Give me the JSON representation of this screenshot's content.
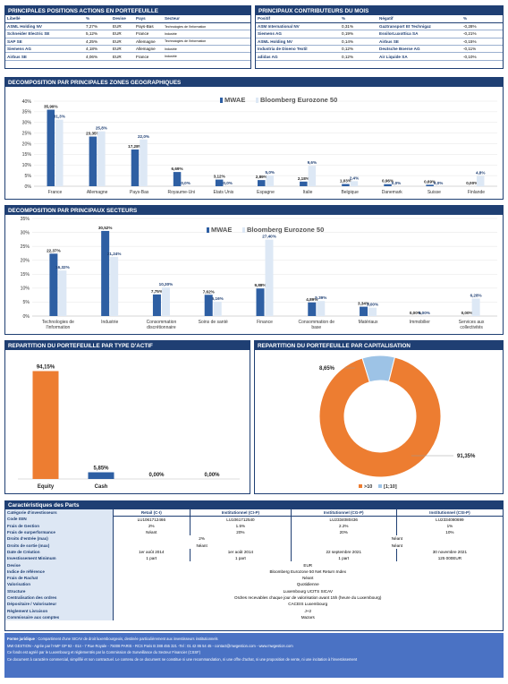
{
  "positions": {
    "title": "PRINCIPALES POSITIONS ACTIONS EN PORTEFEUILLE",
    "headers": [
      "Libellé",
      "%",
      "Devise",
      "Pays",
      "Secteur"
    ],
    "rows": [
      [
        "ASML Holding NV",
        "7,27%",
        "EUR",
        "Pays-Bas",
        "Technologies de l'information"
      ],
      [
        "Schneider Electric SE",
        "5,12%",
        "EUR",
        "France",
        "Industrie"
      ],
      [
        "SAP SE",
        "4,25%",
        "EUR",
        "Allemagne",
        "Technologies de l'information"
      ],
      [
        "Siemens AG",
        "4,18%",
        "EUR",
        "Allemagne",
        "Industrie"
      ],
      [
        "Airbus SE",
        "4,06%",
        "EUR",
        "France",
        "Industrie"
      ]
    ]
  },
  "contributors": {
    "title": "PRINCIPAUX CONTRIBUTEURS DU MOIS",
    "headers": [
      "Positif",
      "%",
      "Négatif",
      "%"
    ],
    "rows": [
      [
        "ASM International NV",
        "0,31%",
        "Gaztransport Et Technigaz",
        "-0,28%"
      ],
      [
        "Siemens AG",
        "0,19%",
        "EssilorLuxottica SA",
        "-0,21%"
      ],
      [
        "ASML Holding NV",
        "0,14%",
        "Airbus SE",
        "-0,15%"
      ],
      [
        "Industria de Diseno Textil",
        "0,12%",
        "Deutsche Boerse AG",
        "-0,11%"
      ],
      [
        "adidas AG",
        "0,12%",
        "Air Liquide SA",
        "-0,10%"
      ]
    ]
  },
  "geo": {
    "title": "DECOMPOSITION PAR PRINCIPALES ZONES GEOGRAPHIQUES",
    "legend": [
      "MWAE",
      "Bloomberg Eurozone 50"
    ]
  },
  "sect": {
    "title": "DECOMPOSITION PAR PRINCIPAUX SECTEURS",
    "legend": [
      "MWAE",
      "Bloomberg Eurozone 50"
    ]
  },
  "type": {
    "title": "REPARTITION DU PORTEFEUILLE PAR TYPE D'ACTIF"
  },
  "cap": {
    "title": "REPARTITION DU PORTEFEUILLE PAR CAPITALISATION"
  },
  "chart_data": [
    {
      "type": "bar",
      "title": "DECOMPOSITION PAR PRINCIPALES ZONES GEOGRAPHIQUES",
      "categories": [
        "France",
        "Allemagne",
        "Pays-Bas",
        "Royaume-Uni",
        "Etats Unis",
        "Espagne",
        "Italie",
        "Belgique",
        "Danemark",
        "Suisse",
        "Finlande"
      ],
      "series": [
        {
          "name": "MWAE",
          "values": [
            35.99,
            23.35,
            17.28,
            6.69,
            3.12,
            2.89,
            2.18,
            1.03,
            0.96,
            0.69,
            0.0
          ]
        },
        {
          "name": "Bloomberg Eurozone 50",
          "values": [
            31.3,
            25.8,
            22.0,
            0.0,
            0.0,
            5.0,
            9.6,
            2.4,
            0.0,
            0.0,
            4.8
          ]
        }
      ],
      "labels": [
        [
          "35,99%",
          "23,35%",
          "17,28%",
          "6,69%",
          "3,12%",
          "2,89%",
          "2,18%",
          "1,03%",
          "0,96%",
          "0,69%",
          "0,00%"
        ],
        [
          "31,3%",
          "25,8%",
          "22,0%",
          "0,0%",
          "0,0%",
          "5,0%",
          "9,6%",
          "2,4%",
          "0,0%",
          "0,0%",
          "4,8%"
        ]
      ],
      "yticks": [
        "0%",
        "5%",
        "10%",
        "15%",
        "20%",
        "25%",
        "30%",
        "35%",
        "40%"
      ],
      "ylim": [
        0,
        40
      ],
      "legend_position": "top"
    },
    {
      "type": "bar",
      "title": "DECOMPOSITION PAR PRINCIPAUX SECTEURS",
      "categories": [
        "Technologies de l'information",
        "Industrie",
        "Consommation discrétionnaire",
        "Soins de santé",
        "Finance",
        "Consommation de base",
        "Matériaux",
        "Immobilier",
        "Services aux collectivités"
      ],
      "category_lines": [
        [
          "Technologies de",
          "l'information"
        ],
        [
          "Industrie"
        ],
        [
          "Consommation",
          "discrétionnaire"
        ],
        [
          "Soins de santé"
        ],
        [
          "Finance"
        ],
        [
          "Consommation de",
          "base"
        ],
        [
          "Matériaux"
        ],
        [
          "Immobilier"
        ],
        [
          "Services aux",
          "collectivités"
        ]
      ],
      "series": [
        {
          "name": "MWAE",
          "values": [
            22.37,
            30.52,
            7.75,
            7.62,
            9.88,
            4.89,
            3.34,
            0.0,
            0.0
          ]
        },
        {
          "name": "Bloomberg Eurozone 50",
          "values": [
            16.32,
            21.24,
            10.3,
            5.16,
            27.4,
            5.39,
            3.0,
            0.0,
            6.28
          ]
        }
      ],
      "labels": [
        [
          "22,37%",
          "30,52%",
          "7,75%",
          "7,62%",
          "9,88%",
          "4,89%",
          "3,34%",
          "0,00%",
          "0,00%"
        ],
        [
          "16,32%",
          "21,24%",
          "10,30%",
          "5,16%",
          "27,40%",
          "5,39%",
          "3,00%",
          "0,00%",
          "6,28%"
        ]
      ],
      "yticks": [
        "0%",
        "5%",
        "10%",
        "15%",
        "20%",
        "25%",
        "30%",
        "35%"
      ],
      "ylim": [
        0,
        35
      ],
      "legend_position": "top"
    },
    {
      "type": "bar",
      "title": "REPARTITION DU PORTEFEUILLE PAR TYPE D'ACTIF",
      "categories": [
        "Equity",
        "Cash",
        "",
        ""
      ],
      "values": [
        94.15,
        5.85,
        0.0,
        0.0
      ],
      "labels": [
        "94,15%",
        "5,85%",
        "0,00%",
        "0,00%"
      ],
      "colors": [
        "#ed7d31",
        "#2e5fa3",
        "#2e5fa3",
        "#2e5fa3"
      ],
      "ylim": [
        0,
        100
      ]
    },
    {
      "type": "pie",
      "title": "REPARTITION DU PORTEFEUILLE PAR CAPITALISATION",
      "categories": [
        ">10",
        "[1;10]"
      ],
      "values": [
        91.35,
        8.65
      ],
      "labels": [
        "91,35%",
        "8,65%"
      ],
      "colors": [
        "#ed7d31",
        "#9dc3e6"
      ],
      "legend_position": "bottom"
    }
  ],
  "caract": {
    "title": "Caractéristiques des Parts",
    "col_heads": [
      "Retail (C-I)",
      "Institutionnel (CI-P)",
      "Institutionnel (CG-P)",
      "Institutionnel (CSI-P)"
    ],
    "rows": [
      {
        "label": "Catégorie d'investisseurs",
        "cells": [
          "Retail (C-I)",
          "Institutionnel (CI-P)",
          "Institutionnel (CG-P)",
          "Institutionnel (CSI-P)"
        ],
        "hd": true
      },
      {
        "label": "Code ISIN",
        "cells": [
          "LU1061712466",
          "LU1061712540",
          "LU2334080436",
          "LU2334080699"
        ]
      },
      {
        "label": "Frais de Gestion",
        "cells": [
          "2%",
          "1.5%",
          "2.2%",
          "1%"
        ]
      },
      {
        "label": "Frais de surperformance",
        "cells": [
          "Néant",
          "20%",
          "20%",
          "10%"
        ]
      },
      {
        "label": "Droits d'entrée (max)",
        "cells2": [
          "2%",
          "Néant"
        ]
      },
      {
        "label": "Droits de sortie (max)",
        "cells2": [
          "Néant",
          "Néant"
        ]
      },
      {
        "label": "Date de Création",
        "cells": [
          "1er août 2014",
          "1er août 2014",
          "22 septembre 2021",
          "30 novembre 2021"
        ]
      },
      {
        "label": "Investissement Minimum",
        "cells": [
          "1 part",
          "1 part",
          "1 part",
          "125 000EUR"
        ]
      },
      {
        "label": "Devise",
        "full": "EUR"
      },
      {
        "label": "Indice de référence",
        "full": "Bloomberg Eurozone 50 Net Return Index"
      },
      {
        "label": "Frais de Rachat",
        "full": "Néant"
      },
      {
        "label": "Valorisation",
        "full": "Quotidienne"
      },
      {
        "label": "Structure",
        "full": "Luxembourg UCITS SICAV"
      },
      {
        "label": "Centralisation des ordres",
        "full": "Ordres recevables chaque jour de valorisation avant 15h (heure du Luxembourg)"
      },
      {
        "label": "Dépositaire / Valorisateur",
        "full": "CACEIS Luxembourg"
      },
      {
        "label": "Règlement Livraison",
        "full": "J+2"
      },
      {
        "label": "Commissaire aux comptes",
        "full": "Mazars"
      }
    ]
  },
  "footer": {
    "l1_bold": "Forme juridique",
    "l1": " : Compartiment d'une SICAV de droit luxembourgeois, destinée particulièrement aux investisseurs institutionnels",
    "l2": "MW GESTION - Agrée par l'AMF GP 92 - 014 - 7 Rue Royale - 75008 PARIS - RCS Paris B 388 455 321 -Tel : 01 42 86 54 45 - contact@mwgestion.com - www.mwgestion.com",
    "l3": "Ce fonds est agréé par le Luxembourg et réglementés par la Commission de Surveillance du Secteur Financier (CSSF)",
    "l4": "Ce document à caractère commercial, simplifié et non contractuel. Le contenu de ce document ne constitue ni une recommandation, ni une offre d'achat, ni une proposition de vente, ni une incitation à l'investissement"
  },
  "colors": {
    "navy": "#1f3f73",
    "mwae": "#2e5fa3",
    "bench": "#dde8f5",
    "orange": "#ed7d31",
    "lightblue": "#9dc3e6"
  }
}
